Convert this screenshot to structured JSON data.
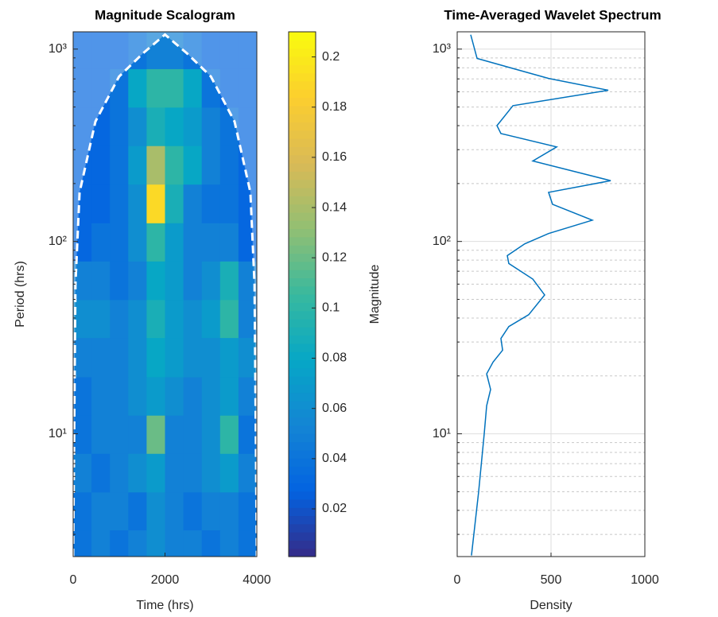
{
  "chart_data": [
    {
      "type": "heatmap",
      "title": "Magnitude Scalogram",
      "xlabel": "Time (hrs)",
      "ylabel": "Period (hrs)",
      "x": [
        200,
        600,
        1000,
        1400,
        1800,
        2200,
        2600,
        3000,
        3400,
        3800
      ],
      "y": [
        2.5,
        4,
        6.3,
        10,
        15.8,
        25,
        40,
        63,
        100,
        158,
        251,
        398,
        631,
        1000
      ],
      "values": [
        [
          0.04,
          0.05,
          0.04,
          0.05,
          0.06,
          0.05,
          0.05,
          0.04,
          0.05,
          0.04
        ],
        [
          0.04,
          0.05,
          0.05,
          0.04,
          0.06,
          0.05,
          0.04,
          0.05,
          0.05,
          0.04
        ],
        [
          0.05,
          0.04,
          0.05,
          0.06,
          0.07,
          0.05,
          0.05,
          0.06,
          0.07,
          0.05
        ],
        [
          0.04,
          0.05,
          0.05,
          0.05,
          0.12,
          0.05,
          0.05,
          0.06,
          0.1,
          0.04
        ],
        [
          0.04,
          0.05,
          0.05,
          0.06,
          0.07,
          0.06,
          0.05,
          0.06,
          0.07,
          0.05
        ],
        [
          0.05,
          0.05,
          0.05,
          0.06,
          0.08,
          0.07,
          0.06,
          0.06,
          0.07,
          0.06
        ],
        [
          0.06,
          0.06,
          0.05,
          0.06,
          0.09,
          0.07,
          0.06,
          0.07,
          0.1,
          0.05
        ],
        [
          0.05,
          0.05,
          0.04,
          0.05,
          0.08,
          0.07,
          0.05,
          0.06,
          0.09,
          0.05
        ],
        [
          0.03,
          0.04,
          0.04,
          0.06,
          0.1,
          0.07,
          0.05,
          0.05,
          0.05,
          0.03
        ],
        [
          0.03,
          0.03,
          0.04,
          0.06,
          0.19,
          0.09,
          0.05,
          0.04,
          0.04,
          0.03
        ],
        [
          0.03,
          0.03,
          0.04,
          0.07,
          0.14,
          0.1,
          0.08,
          0.05,
          0.04,
          0.03
        ],
        [
          0.03,
          0.03,
          0.04,
          0.06,
          0.09,
          0.08,
          0.07,
          0.05,
          0.04,
          0.03
        ],
        [
          0.03,
          0.03,
          0.04,
          0.08,
          0.1,
          0.1,
          0.08,
          0.04,
          0.03,
          0.03
        ],
        [
          0.03,
          0.03,
          0.03,
          0.04,
          0.05,
          0.05,
          0.04,
          0.03,
          0.03,
          0.03
        ]
      ],
      "colormap": [
        "#352a87",
        "#0363e1",
        "#1485d4",
        "#06a7c6",
        "#38b99e",
        "#92bf73",
        "#d9ba56",
        "#fcce2e",
        "#f9fb0e"
      ],
      "coi": {
        "time": [
          0,
          50,
          140,
          485,
          1000,
          1520,
          2000,
          2480,
          3000,
          3515,
          3860,
          3950,
          4000
        ],
        "period": [
          2.3,
          60,
          180,
          420,
          720,
          950,
          1190,
          950,
          720,
          420,
          180,
          60,
          2.3
        ]
      },
      "xlim": [
        0,
        4000
      ],
      "xticks": [
        0,
        2000,
        4000
      ],
      "ylim": [
        2.3,
        1230
      ],
      "ylog": true,
      "yticks": [
        {
          "value": 10,
          "label": "10¹"
        },
        {
          "value": 100,
          "label": "10²"
        },
        {
          "value": 1000,
          "label": "10³"
        }
      ],
      "y_minor_ticks": [
        3,
        4,
        5,
        6,
        7,
        8,
        9,
        20,
        30,
        40,
        50,
        60,
        70,
        80,
        90,
        200,
        300,
        400,
        500,
        600,
        700,
        800,
        900
      ],
      "colorbar": {
        "label": "Magnitude",
        "lim": [
          0.001,
          0.21
        ],
        "ticks": [
          0.02,
          0.04,
          0.06,
          0.08,
          0.1,
          0.12,
          0.14,
          0.16,
          0.18,
          0.2
        ]
      }
    },
    {
      "type": "line",
      "title": "Time-Averaged Wavelet Spectrum",
      "xlabel": "Density",
      "color": "#0072bd",
      "y": [
        2.33,
        4.97,
        10,
        14,
        17,
        20.5,
        23.6,
        27.2,
        31.3,
        36.1,
        41.6,
        52.7,
        63.7,
        76.8,
        84.4,
        97.2,
        110,
        129,
        156,
        180,
        207,
        262,
        310,
        364,
        400,
        508,
        611,
        704,
        894,
        1187
      ],
      "values": [
        76,
        114,
        144,
        157,
        178,
        157,
        191,
        242,
        233,
        275,
        381,
        466,
        403,
        275,
        267,
        360,
        487,
        720,
        508,
        487,
        818,
        403,
        530,
        233,
        212,
        297,
        805,
        487,
        106,
        72
      ],
      "xlim": [
        0,
        1000
      ],
      "xticks": [
        0,
        500,
        1000
      ],
      "ylim": [
        2.3,
        1230
      ],
      "ylog": true,
      "yticks": [
        {
          "value": 10,
          "label": "10¹"
        },
        {
          "value": 100,
          "label": "10²"
        },
        {
          "value": 1000,
          "label": "10³"
        }
      ],
      "y_minor_ticks": [
        3,
        4,
        5,
        6,
        7,
        8,
        9,
        20,
        30,
        40,
        50,
        60,
        70,
        80,
        90,
        200,
        300,
        400,
        500,
        600,
        700,
        800,
        900
      ],
      "grid": true,
      "minor_grid": true
    }
  ]
}
